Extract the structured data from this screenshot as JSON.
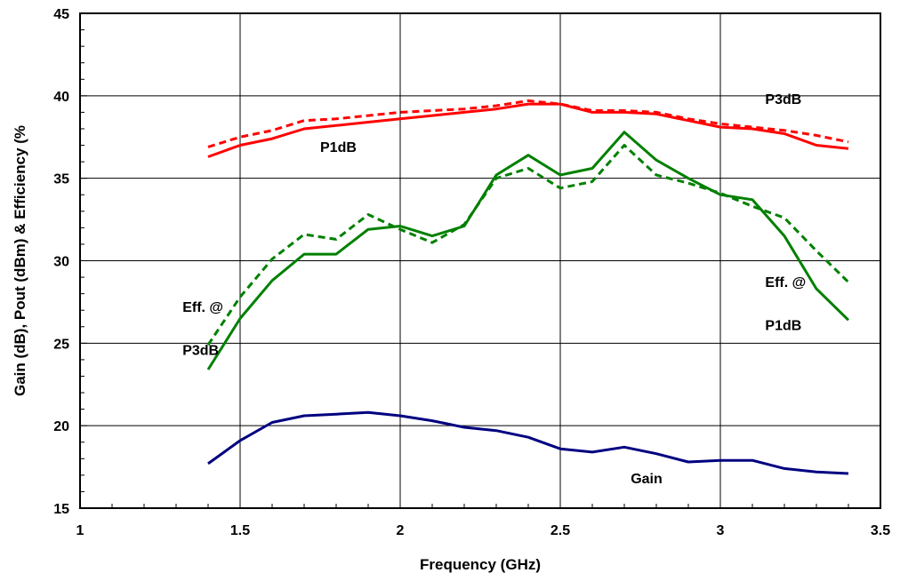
{
  "chart_data": {
    "type": "line",
    "title": "",
    "xlabel": "Frequency (GHz)",
    "ylabel": "Gain (dB), Pout (dBm) & Efficiency (%",
    "xlim": [
      1,
      3.5
    ],
    "ylim": [
      15,
      45
    ],
    "x_ticks": [
      "1",
      "1.5",
      "2",
      "2.5",
      "3",
      "3.5"
    ],
    "y_ticks": [
      "15",
      "20",
      "25",
      "30",
      "35",
      "40",
      "45"
    ],
    "grid": "vertical and horizontal major",
    "x": [
      1.4,
      1.5,
      1.6,
      1.7,
      1.8,
      1.9,
      2.0,
      2.1,
      2.2,
      2.3,
      2.4,
      2.5,
      2.6,
      2.7,
      2.8,
      2.9,
      3.0,
      3.1,
      3.2,
      3.3,
      3.4
    ],
    "series": [
      {
        "key": "p3db",
        "color": "#ff0000",
        "style": "dashed",
        "values": [
          36.9,
          37.5,
          37.9,
          38.5,
          38.6,
          38.8,
          39.0,
          39.1,
          39.2,
          39.4,
          39.7,
          39.5,
          39.1,
          39.1,
          39.0,
          38.6,
          38.3,
          38.1,
          37.9,
          37.6,
          37.2
        ]
      },
      {
        "key": "p1db",
        "color": "#ff0000",
        "style": "solid",
        "values": [
          36.3,
          37.0,
          37.4,
          38.0,
          38.2,
          38.4,
          38.6,
          38.8,
          39.0,
          39.2,
          39.5,
          39.5,
          39.0,
          39.0,
          38.9,
          38.5,
          38.1,
          38.0,
          37.7,
          37.0,
          36.8
        ]
      },
      {
        "key": "eff_p3db",
        "color": "#008000",
        "style": "dashed",
        "values": [
          24.9,
          27.8,
          30.1,
          31.6,
          31.3,
          32.8,
          31.9,
          31.1,
          32.2,
          35.0,
          35.6,
          34.4,
          34.8,
          37.0,
          35.2,
          34.7,
          34.1,
          33.3,
          32.6,
          30.6,
          28.7
        ]
      },
      {
        "key": "eff_p1db",
        "color": "#008000",
        "style": "solid",
        "values": [
          23.4,
          26.5,
          28.8,
          30.4,
          30.4,
          31.9,
          32.1,
          31.5,
          32.1,
          35.2,
          36.4,
          35.2,
          35.6,
          37.8,
          36.1,
          35.0,
          34.0,
          33.7,
          31.5,
          28.3,
          26.4
        ]
      },
      {
        "key": "gain",
        "color": "#000080",
        "style": "solid",
        "values": [
          17.7,
          19.1,
          20.2,
          20.6,
          20.7,
          20.8,
          20.6,
          20.3,
          19.9,
          19.7,
          19.3,
          18.6,
          18.4,
          18.7,
          18.3,
          17.8,
          17.9,
          17.9,
          17.4,
          17.2,
          17.1
        ]
      }
    ],
    "annotations": [
      {
        "text": "P3dB",
        "x": 3.14,
        "y": 39.5
      },
      {
        "text": "P1dB",
        "x": 1.75,
        "y": 36.6
      },
      {
        "text": "Eff. @",
        "x": 1.32,
        "y": 26.9
      },
      {
        "text": "P3dB",
        "x": 1.32,
        "y": 24.3
      },
      {
        "text": "Eff. @",
        "x": 3.14,
        "y": 28.4
      },
      {
        "text": "P1dB",
        "x": 3.14,
        "y": 25.8
      },
      {
        "text": "Gain",
        "x": 2.72,
        "y": 16.5
      }
    ]
  }
}
